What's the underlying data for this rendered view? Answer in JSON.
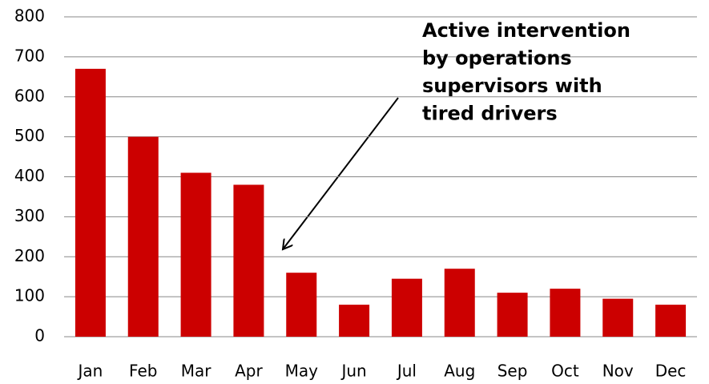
{
  "chart_data": {
    "type": "bar",
    "categories": [
      "Jan",
      "Feb",
      "Mar",
      "Apr",
      "May",
      "Jun",
      "Jul",
      "Aug",
      "Sep",
      "Oct",
      "Nov",
      "Dec"
    ],
    "values": [
      670,
      500,
      410,
      380,
      160,
      80,
      145,
      170,
      110,
      120,
      95,
      80
    ],
    "color": "#cc0000",
    "ylim": [
      0,
      800
    ],
    "yticks": [
      0,
      100,
      200,
      300,
      400,
      500,
      600,
      700,
      800
    ],
    "grid": true,
    "annotation": [
      "Active intervention",
      "by operations",
      "supervisors with",
      "tired drivers"
    ]
  }
}
